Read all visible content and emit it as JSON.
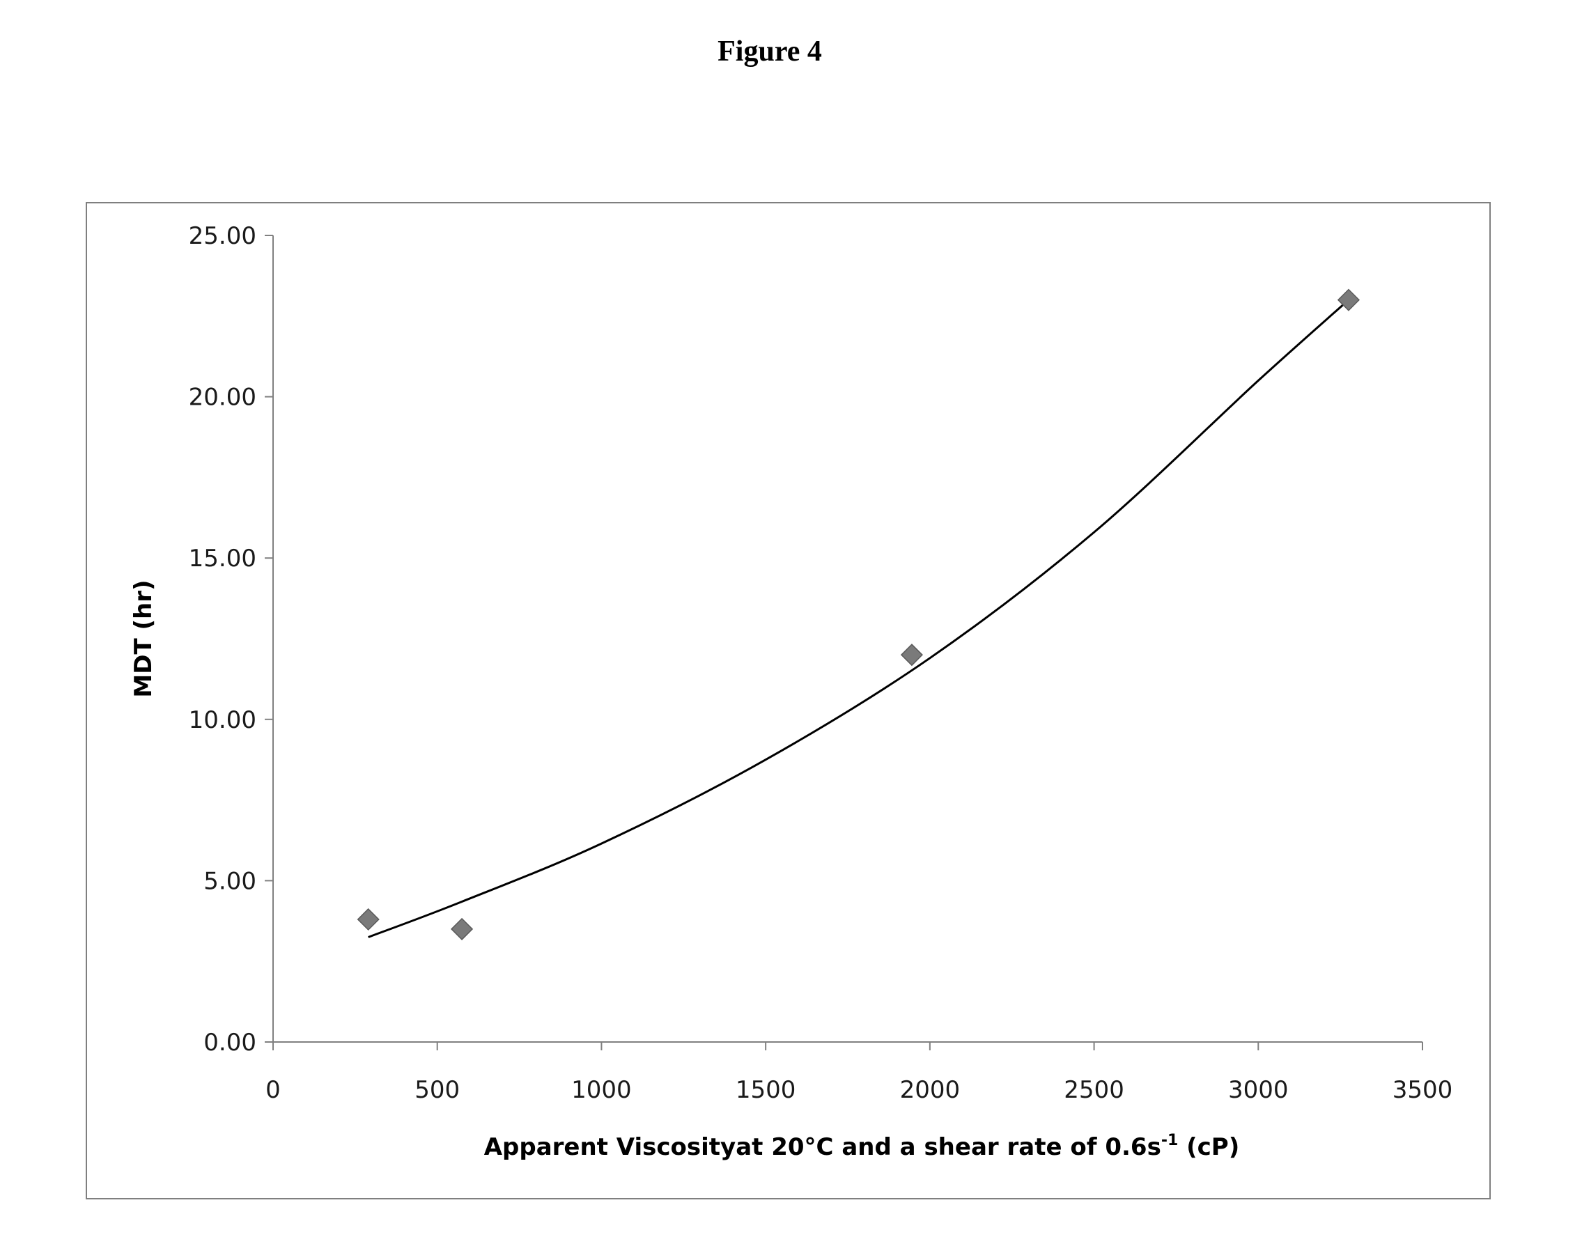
{
  "figure": {
    "title": "Figure 4"
  },
  "chart_data": {
    "type": "scatter",
    "xlabel_main": "Apparent Viscosityat  20°C and a shear rate of 0.6s",
    "xlabel_sup": "-1",
    "xlabel_tail": " (cP)",
    "ylabel": "MDT (hr)",
    "xlim": [
      0,
      3500
    ],
    "ylim": [
      0,
      25
    ],
    "x_ticks": [
      "0",
      "500",
      "1000",
      "1500",
      "2000",
      "2500",
      "3000",
      "3500"
    ],
    "y_ticks": [
      "0.00",
      "5.00",
      "10.00",
      "15.00",
      "20.00",
      "25.00"
    ],
    "grid": false,
    "legend": "none",
    "series": [
      {
        "points": [
          {
            "x": 290,
            "y": 3.8
          },
          {
            "x": 575,
            "y": 3.5
          },
          {
            "x": 1945,
            "y": 12.0
          },
          {
            "x": 3275,
            "y": 23.0
          }
        ],
        "color": "#7a7a7a",
        "marker": "diamond"
      }
    ],
    "trendline": {
      "type": "polynomial",
      "color": "#000000",
      "points": [
        {
          "x": 290,
          "y": 3.25
        },
        {
          "x": 575,
          "y": 4.35
        },
        {
          "x": 1000,
          "y": 6.15
        },
        {
          "x": 1500,
          "y": 8.75
        },
        {
          "x": 2000,
          "y": 11.9
        },
        {
          "x": 2500,
          "y": 15.8
        },
        {
          "x": 3000,
          "y": 20.5
        },
        {
          "x": 3275,
          "y": 23.0
        }
      ]
    }
  }
}
